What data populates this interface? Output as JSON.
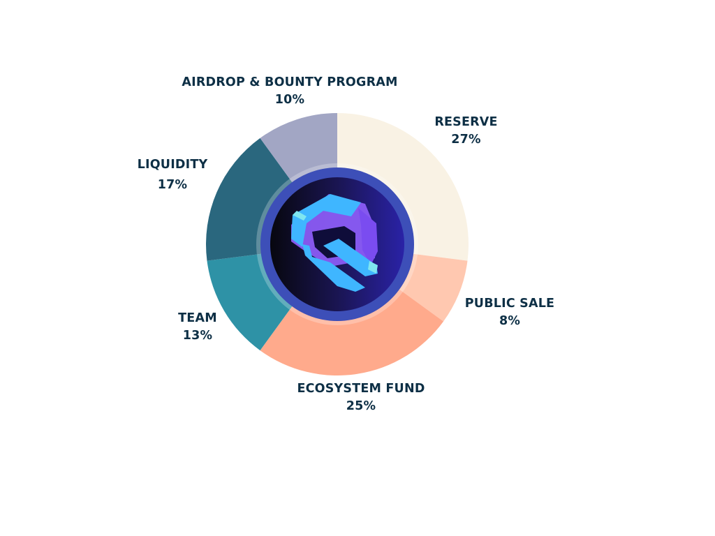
{
  "chart_data": {
    "type": "pie",
    "style": "donut",
    "title": "",
    "slices": [
      {
        "label": "RESERVE",
        "value": 27,
        "value_label": "27%",
        "color": "#f9f2e4"
      },
      {
        "label": "PUBLIC SALE",
        "value": 8,
        "value_label": "8%",
        "color": "#ffc8b0"
      },
      {
        "label": "ECOSYSTEM FUND",
        "value": 25,
        "value_label": "25%",
        "color": "#ffaa8c"
      },
      {
        "label": "TEAM",
        "value": 13,
        "value_label": "13%",
        "color": "#2e92a6"
      },
      {
        "label": "LIQUIDITY",
        "value": 17,
        "value_label": "17%",
        "color": "#2a677e"
      },
      {
        "label": "AIRDROP & BOUNTY PROGRAM",
        "value": 10,
        "value_label": "10%",
        "color": "#a2a6c4"
      }
    ],
    "legend": "none",
    "center_logo": "hexagon-q-logo-icon"
  },
  "colors": {
    "label_text": "#0d2f45",
    "logo_ring": "#3d4fb8",
    "logo_disc": "#1b1a5c",
    "logo_cyan": "#3fb6ff",
    "logo_purple": "#8b5cf6"
  }
}
